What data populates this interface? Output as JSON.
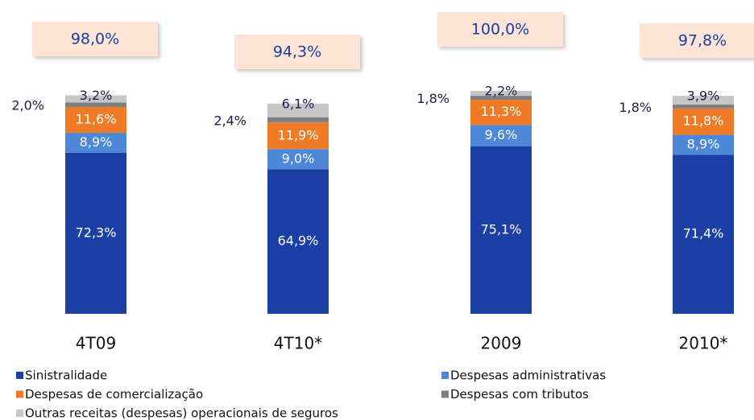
{
  "chart_data": {
    "type": "stacked_bar",
    "categories": [
      "4T09",
      "4T10*",
      "2009",
      "2010*"
    ],
    "series": [
      {
        "name": "Sinistralidade",
        "color": "#1c3fa6",
        "values": [
          72.3,
          64.9,
          75.1,
          71.4
        ],
        "value_labels": [
          "72,3%",
          "64,9%",
          "75,1%",
          "71,4%"
        ]
      },
      {
        "name": "Despesas administrativas",
        "color": "#4d88d8",
        "values": [
          8.9,
          9.0,
          9.6,
          8.9
        ],
        "value_labels": [
          "8,9%",
          "9,0%",
          "9,6%",
          "8,9%"
        ]
      },
      {
        "name": "Despesas de comercialização",
        "color": "#ef7b26",
        "values": [
          11.6,
          11.9,
          11.3,
          11.8
        ],
        "value_labels": [
          "11,6%",
          "11,9%",
          "11,3%",
          "11,8%"
        ]
      },
      {
        "name": "Despesas com tributos",
        "color": "#7f7f7f",
        "values": [
          2.0,
          2.4,
          1.8,
          1.8
        ],
        "value_labels": [
          "2,0%",
          "2,4%",
          "1,8%",
          "1,8%"
        ]
      },
      {
        "name": "Outras receitas (despesas) operacionais de seguros",
        "color": "#c6c6c6",
        "values": [
          3.2,
          6.1,
          2.2,
          3.9
        ],
        "value_labels": [
          "3,2%",
          "6,1%",
          "2,2%",
          "3,9%"
        ]
      }
    ],
    "totals": {
      "values": [
        98.0,
        94.3,
        100.0,
        97.8
      ],
      "value_labels": [
        "98,0%",
        "94,3%",
        "100,0%",
        "97,8%"
      ]
    }
  }
}
